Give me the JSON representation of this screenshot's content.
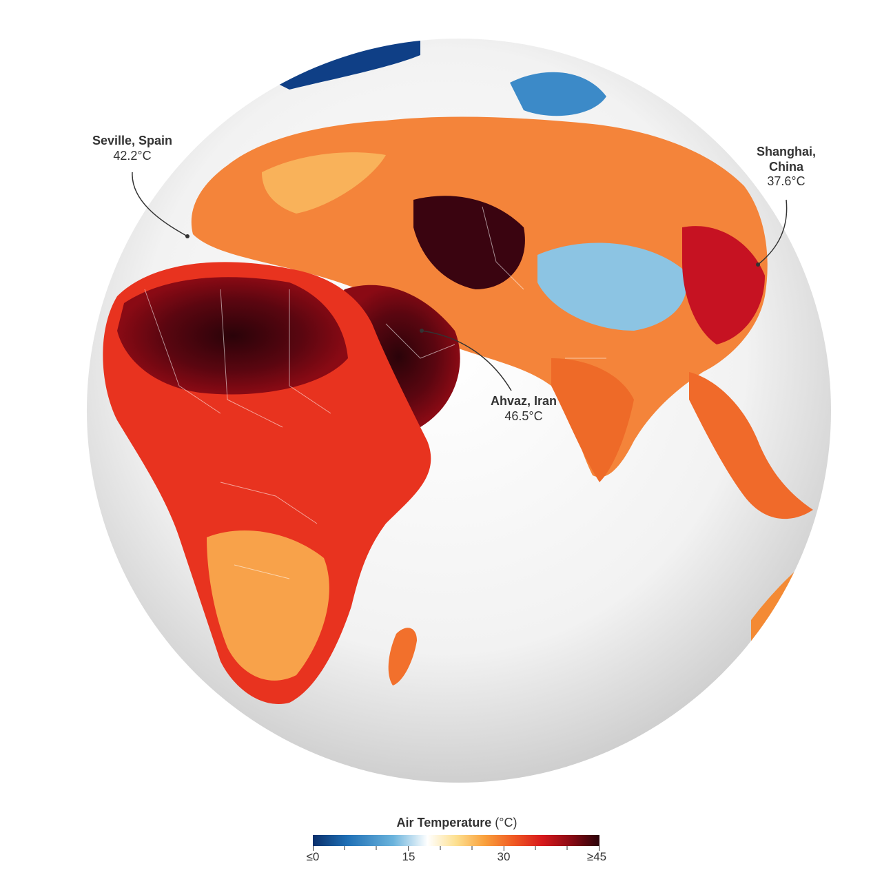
{
  "map": {
    "callouts": [
      {
        "id": "seville",
        "name": "Seville, Spain",
        "temp": "42.2°C"
      },
      {
        "id": "shanghai",
        "name": "Shanghai,\nChina",
        "temp": "37.6°C"
      },
      {
        "id": "ahvaz",
        "name": "Ahvaz, Iran",
        "temp": "46.5°C"
      }
    ]
  },
  "legend": {
    "title_bold": "Air Temperature",
    "title_unit": " (°C)",
    "tick_labels": [
      "≤0",
      "15",
      "30",
      "≥45"
    ],
    "colors": [
      "#0a2f6b",
      "#1f6fb5",
      "#6ab3dc",
      "#ffffff",
      "#fde090",
      "#f9a03c",
      "#f05a23",
      "#d7191c",
      "#8a0a14",
      "#2a0309"
    ]
  }
}
